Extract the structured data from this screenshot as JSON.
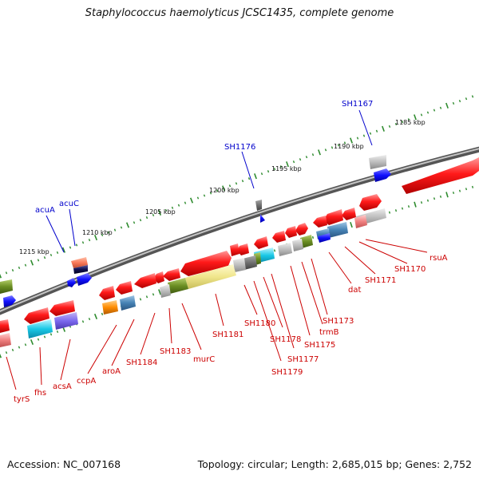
{
  "title": "Staphylococcus haemolyticus JCSC1435, complete genome",
  "footer": {
    "accession": "Accession: NC_007168",
    "summary": "Topology: circular; Length: 2,685,015 bp; Genes: 2,752"
  },
  "colors": {
    "backbone": "#7f7f7f",
    "forward_label": "#0000cc",
    "reverse_label": "#cc0000",
    "ruler_tick": "#2e8b2e"
  },
  "ruler": [
    {
      "label": "1185 kbp"
    },
    {
      "label": "1190 kbp"
    },
    {
      "label": "1195 kbp"
    },
    {
      "label": "1200 kbp"
    },
    {
      "label": "1205 kbp"
    },
    {
      "label": "1210 kbp"
    },
    {
      "label": "1215 kbp"
    }
  ],
  "forward_genes": [
    {
      "name": "SH1167"
    },
    {
      "name": "SH1176"
    },
    {
      "name": "acuC"
    },
    {
      "name": "acuA"
    }
  ],
  "reverse_genes": [
    {
      "name": "rsuA"
    },
    {
      "name": "SH1170"
    },
    {
      "name": "SH1171"
    },
    {
      "name": "dat"
    },
    {
      "name": "SH1173"
    },
    {
      "name": "trmB"
    },
    {
      "name": "SH1175"
    },
    {
      "name": "SH1177"
    },
    {
      "name": "SH1178"
    },
    {
      "name": "SH1179"
    },
    {
      "name": "SH1180"
    },
    {
      "name": "SH1181"
    },
    {
      "name": "murC"
    },
    {
      "name": "SH1183"
    },
    {
      "name": "SH1184"
    },
    {
      "name": "aroA"
    },
    {
      "name": "ccpA"
    },
    {
      "name": "acsA"
    },
    {
      "name": "fhs"
    },
    {
      "name": "tyrS"
    }
  ]
}
